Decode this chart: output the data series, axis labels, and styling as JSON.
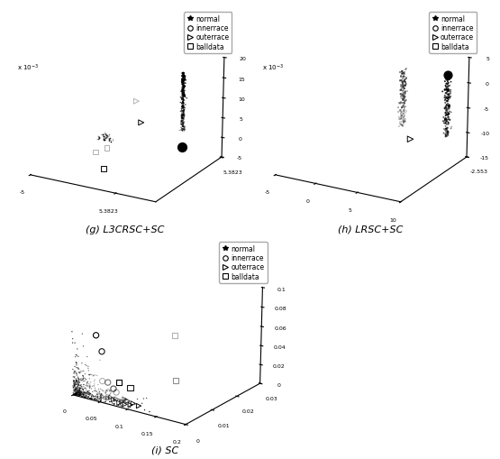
{
  "title_g": "(g) L3CRSC+SC",
  "title_h": "(h) LRSC+SC",
  "title_i": "(i) SC",
  "legend_labels": [
    "normal",
    "innerrace",
    "outerrace",
    "balldata"
  ],
  "bg_color": "#ffffff"
}
